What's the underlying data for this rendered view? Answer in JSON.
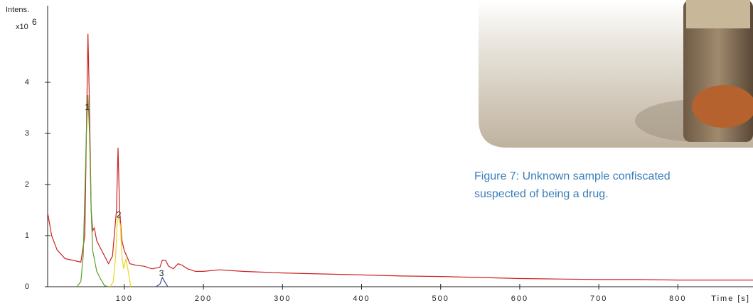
{
  "chart_data": {
    "type": "line",
    "y_label": "Intens.",
    "y_scale": "x10",
    "y_scale_exponent": 6,
    "x_label": "Time [s]",
    "xlim": [
      3,
      895
    ],
    "ylim": [
      0,
      5.5
    ],
    "xticks": [
      100,
      200,
      300,
      400,
      500,
      600,
      700,
      800
    ],
    "yticks": [
      0,
      1,
      2,
      3,
      4
    ],
    "series": [
      {
        "color": "#cc2222",
        "x": [
          3,
          8,
          15,
          25,
          40,
          45,
          50,
          52,
          54,
          56,
          58,
          60,
          62,
          65,
          70,
          75,
          80,
          85,
          90,
          92,
          94,
          97,
          100,
          103,
          107,
          115,
          125,
          135,
          145,
          148,
          152,
          156,
          162,
          168,
          173,
          180,
          190,
          200,
          220,
          250,
          300,
          350,
          400,
          450,
          500,
          550,
          600,
          650,
          700,
          750,
          800,
          850,
          895
        ],
        "values": [
          1.45,
          1.0,
          0.72,
          0.55,
          0.5,
          0.48,
          1.0,
          3.0,
          4.95,
          3.5,
          1.5,
          1.1,
          1.15,
          0.9,
          0.75,
          0.6,
          0.45,
          0.6,
          1.5,
          2.72,
          1.5,
          0.9,
          0.7,
          0.6,
          0.45,
          0.42,
          0.4,
          0.35,
          0.38,
          0.52,
          0.52,
          0.4,
          0.35,
          0.45,
          0.42,
          0.35,
          0.3,
          0.3,
          0.33,
          0.3,
          0.27,
          0.25,
          0.23,
          0.21,
          0.2,
          0.18,
          0.16,
          0.15,
          0.14,
          0.14,
          0.13,
          0.13,
          0.13
        ]
      },
      {
        "color": "#5aa02c",
        "x": [
          40,
          45,
          48,
          50,
          52,
          54,
          56,
          58,
          60,
          62,
          65,
          70,
          75,
          80
        ],
        "values": [
          0,
          0.1,
          0.6,
          1.8,
          3.0,
          3.75,
          3.0,
          1.5,
          0.7,
          0.55,
          0.3,
          0.15,
          0.02,
          0
        ]
      },
      {
        "color": "#e8d820",
        "x": [
          82,
          86,
          89,
          91,
          93,
          95,
          97,
          99,
          102,
          105,
          108
        ],
        "values": [
          0,
          0.1,
          0.6,
          1.3,
          1.35,
          1.2,
          0.6,
          0.35,
          0.55,
          0.3,
          0
        ]
      },
      {
        "color": "#3a4a8a",
        "x": [
          140,
          145,
          148,
          151,
          155
        ],
        "values": [
          0,
          0.05,
          0.18,
          0.1,
          0
        ]
      }
    ],
    "annotations": [
      {
        "text": "1",
        "x": 53,
        "y": 3.5
      },
      {
        "text": "2",
        "x": 93,
        "y": 1.4
      },
      {
        "text": "3",
        "x": 147,
        "y": 0.25
      }
    ]
  },
  "caption": [
    "Figure 7: Unknown sample confiscated",
    "suspected of being a drug."
  ]
}
